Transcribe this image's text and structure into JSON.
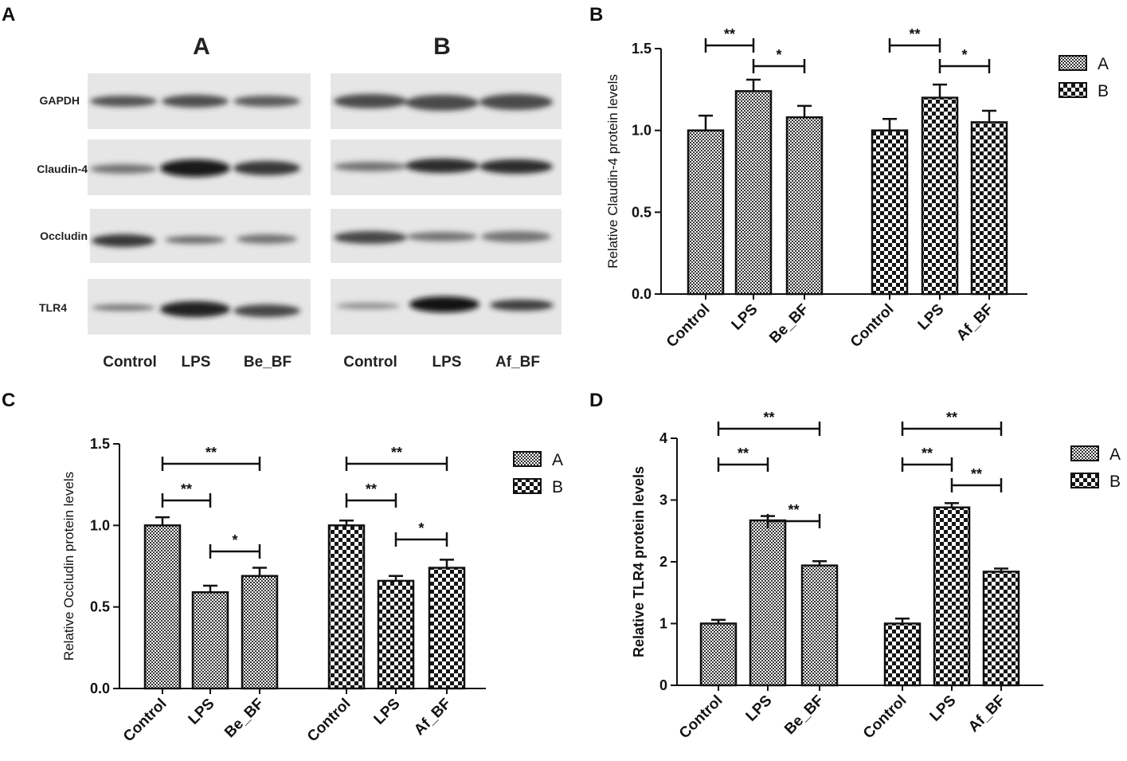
{
  "panels": {
    "A": "A",
    "B": "B",
    "C": "C",
    "D": "D"
  },
  "blot": {
    "group_labels": [
      "A",
      "B"
    ],
    "rows": [
      "GAPDH",
      "Claudin-4",
      "Occludin",
      "TLR4"
    ],
    "lanes_a": [
      "Control",
      "LPS",
      "Be_BF"
    ],
    "lanes_b": [
      "Control",
      "LPS",
      "Af_BF"
    ]
  },
  "colors": {
    "axis": "#111111",
    "bar_a_pattern": "fine-checker",
    "bar_b_pattern": "coarse-checker"
  },
  "chart_data": [
    {
      "panel": "B",
      "type": "bar",
      "ylabel": "Relative Claudin-4 protein levels",
      "ylim": [
        0,
        1.5
      ],
      "yticks": [
        "0.0",
        "0.5",
        "1.0",
        "1.5"
      ],
      "legend": [
        "A",
        "B"
      ],
      "legend_position": "right",
      "groups": [
        {
          "series": "A",
          "categories": [
            "Control",
            "LPS",
            "Be_BF"
          ],
          "values": [
            1.0,
            1.24,
            1.08
          ],
          "errors": [
            0.09,
            0.07,
            0.07
          ]
        },
        {
          "series": "B",
          "categories": [
            "Control",
            "LPS",
            "Af_BF"
          ],
          "values": [
            1.0,
            1.2,
            1.05
          ],
          "errors": [
            0.07,
            0.08,
            0.07
          ]
        }
      ],
      "significance": [
        {
          "group": 0,
          "from": 0,
          "to": 1,
          "label": "**"
        },
        {
          "group": 0,
          "from": 1,
          "to": 2,
          "label": "*"
        },
        {
          "group": 1,
          "from": 0,
          "to": 1,
          "label": "**"
        },
        {
          "group": 1,
          "from": 1,
          "to": 2,
          "label": "*"
        }
      ]
    },
    {
      "panel": "C",
      "type": "bar",
      "ylabel": "Relative Occludin protein levels",
      "ylim": [
        0,
        1.5
      ],
      "yticks": [
        "0.0",
        "0.5",
        "1.0",
        "1.5"
      ],
      "legend": [
        "A",
        "B"
      ],
      "legend_position": "right",
      "groups": [
        {
          "series": "A",
          "categories": [
            "Control",
            "LPS",
            "Be_BF"
          ],
          "values": [
            1.0,
            0.59,
            0.69
          ],
          "errors": [
            0.05,
            0.04,
            0.05
          ]
        },
        {
          "series": "B",
          "categories": [
            "Control",
            "LPS",
            "Af_BF"
          ],
          "values": [
            1.0,
            0.66,
            0.74
          ],
          "errors": [
            0.03,
            0.03,
            0.05
          ]
        }
      ],
      "significance": [
        {
          "group": 0,
          "from": 0,
          "to": 2,
          "label": "**"
        },
        {
          "group": 0,
          "from": 0,
          "to": 1,
          "label": "**"
        },
        {
          "group": 0,
          "from": 1,
          "to": 2,
          "label": "*"
        },
        {
          "group": 1,
          "from": 0,
          "to": 2,
          "label": "**"
        },
        {
          "group": 1,
          "from": 0,
          "to": 1,
          "label": "**"
        },
        {
          "group": 1,
          "from": 1,
          "to": 2,
          "label": "*"
        }
      ]
    },
    {
      "panel": "D",
      "type": "bar",
      "ylabel": "Relative TLR4 protein levels",
      "ylim": [
        0,
        4
      ],
      "yticks": [
        "0",
        "1",
        "2",
        "3",
        "4"
      ],
      "legend": [
        "A",
        "B"
      ],
      "legend_position": "right",
      "groups": [
        {
          "series": "A",
          "categories": [
            "Control",
            "LPS",
            "Be_BF"
          ],
          "values": [
            1.0,
            2.67,
            1.94
          ],
          "errors": [
            0.06,
            0.07,
            0.07
          ]
        },
        {
          "series": "B",
          "categories": [
            "Control",
            "LPS",
            "Af_BF"
          ],
          "values": [
            1.0,
            2.88,
            1.84
          ],
          "errors": [
            0.08,
            0.07,
            0.05
          ]
        }
      ],
      "significance": [
        {
          "group": 0,
          "from": 0,
          "to": 2,
          "label": "**"
        },
        {
          "group": 0,
          "from": 0,
          "to": 1,
          "label": "**"
        },
        {
          "group": 0,
          "from": 1,
          "to": 2,
          "label": "**"
        },
        {
          "group": 1,
          "from": 0,
          "to": 2,
          "label": "**"
        },
        {
          "group": 1,
          "from": 0,
          "to": 1,
          "label": "**"
        },
        {
          "group": 1,
          "from": 1,
          "to": 2,
          "label": "**"
        }
      ]
    }
  ]
}
